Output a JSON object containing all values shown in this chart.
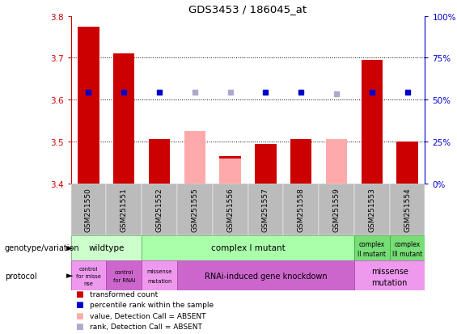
{
  "title": "GDS3453 / 186045_at",
  "samples": [
    "GSM251550",
    "GSM251551",
    "GSM251552",
    "GSM251555",
    "GSM251556",
    "GSM251557",
    "GSM251558",
    "GSM251559",
    "GSM251553",
    "GSM251554"
  ],
  "bar_values": [
    3.775,
    3.71,
    3.505,
    null,
    3.465,
    3.495,
    3.505,
    null,
    3.695,
    3.5
  ],
  "bar_absent_values": [
    null,
    null,
    null,
    3.525,
    3.46,
    null,
    null,
    3.505,
    null,
    null
  ],
  "rank_values": [
    54.5,
    54.5,
    54.5,
    54.5,
    54.5,
    54.5,
    54.5,
    53.5,
    54.5,
    54.5
  ],
  "rank_absent": [
    false,
    false,
    false,
    true,
    true,
    false,
    false,
    true,
    false,
    false
  ],
  "ylim": [
    3.4,
    3.8
  ],
  "yticks": [
    3.4,
    3.5,
    3.6,
    3.7,
    3.8
  ],
  "y2lim": [
    0,
    100
  ],
  "y2ticks": [
    0,
    25,
    50,
    75,
    100
  ],
  "bar_color": "#cc0000",
  "bar_absent_color": "#ffaaaa",
  "rank_color": "#0000cc",
  "rank_absent_color": "#aaaacc",
  "xticklabel_bg": "#bbbbbb",
  "wildtype_color": "#ccffcc",
  "complex_I_color": "#aaffaa",
  "complex_II_color": "#77dd77",
  "complex_III_color": "#77dd77",
  "protocol_light_color": "#ee99ee",
  "protocol_dark_color": "#cc66cc"
}
